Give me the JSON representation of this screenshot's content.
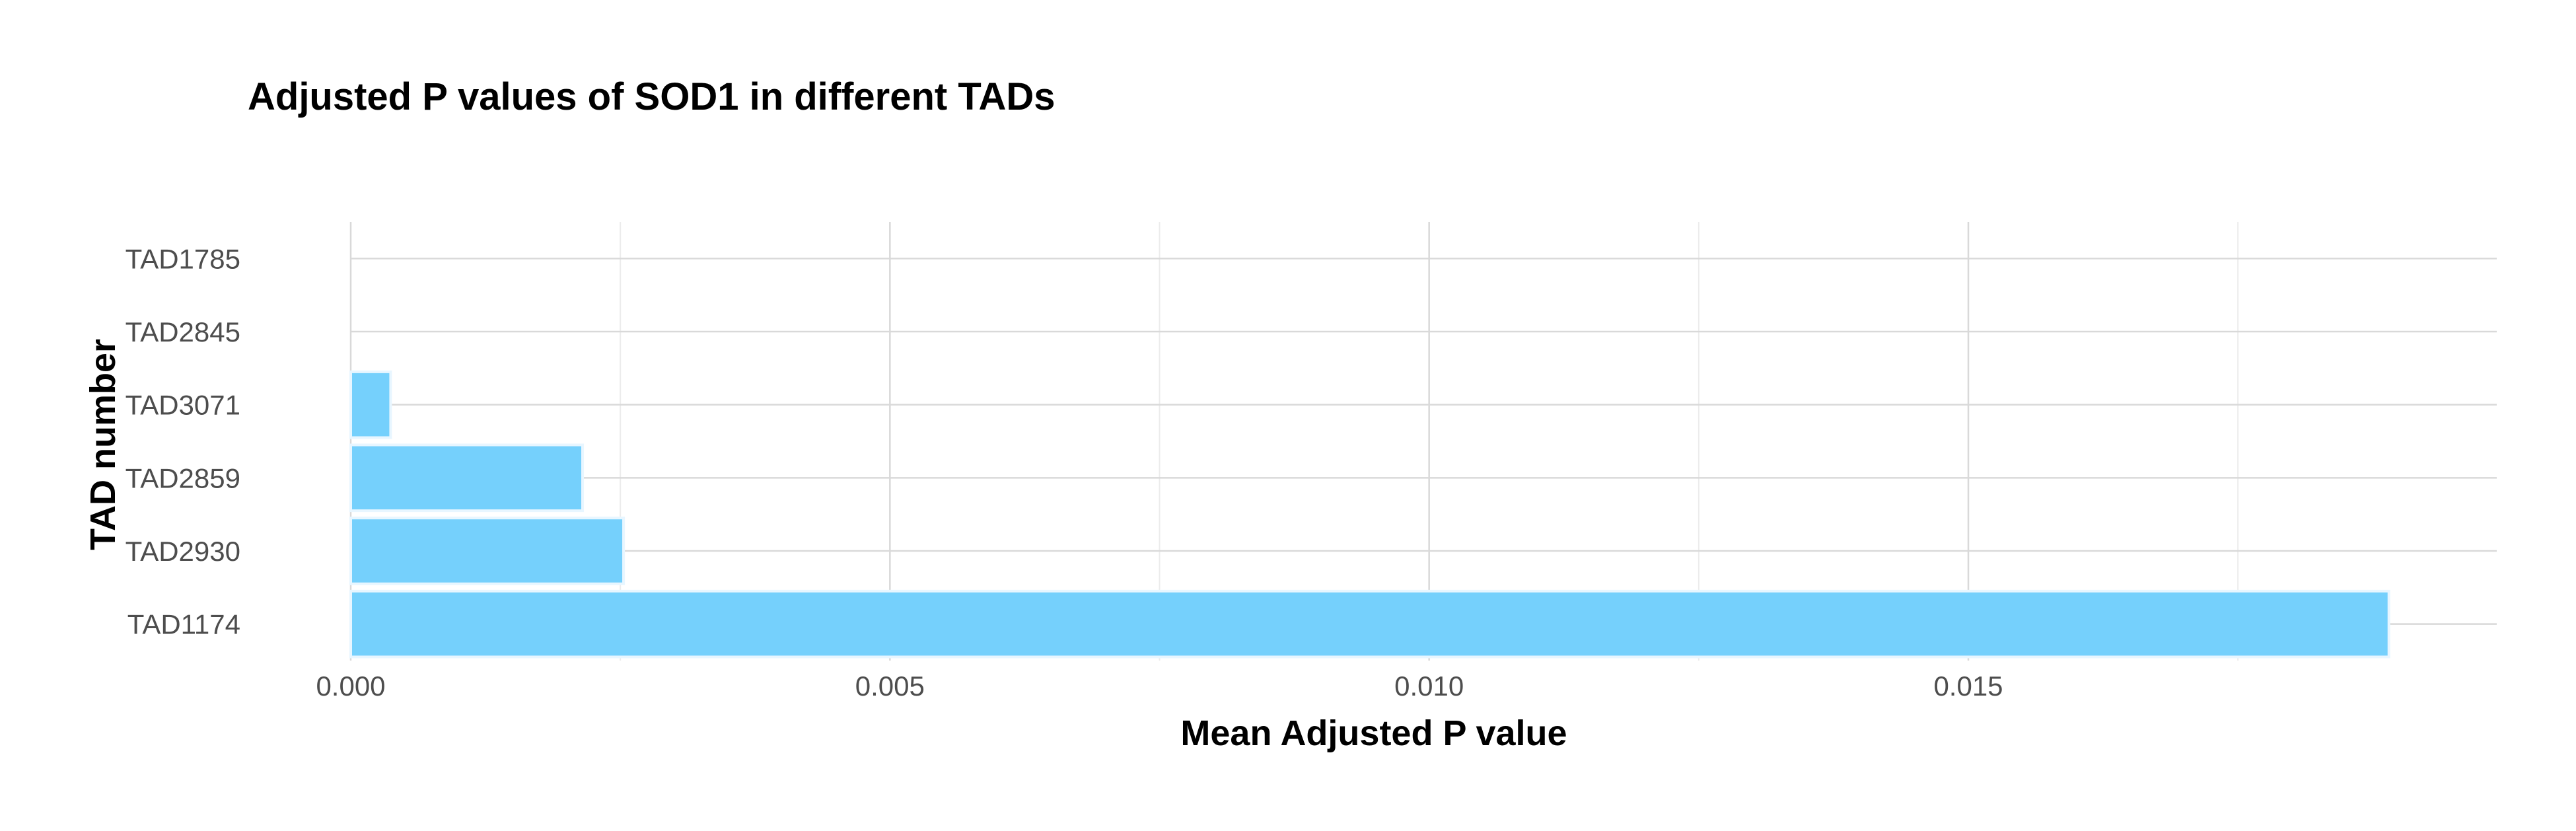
{
  "chart_data": {
    "type": "bar",
    "orientation": "horizontal",
    "title": "Adjusted P values of SOD1 in different TADs",
    "xlabel": "Mean Adjusted P value",
    "ylabel": "TAD number",
    "categories": [
      "TAD1174",
      "TAD2930",
      "TAD2859",
      "TAD3071",
      "TAD2845",
      "TAD1785"
    ],
    "values": [
      0.0189,
      0.00253,
      0.00215,
      0.00037,
      0.0,
      0.0
    ],
    "xlim": [
      0.0,
      0.0199
    ],
    "xticks": [
      0.0,
      0.005,
      0.01,
      0.015
    ],
    "xtick_labels": [
      "0.000",
      "0.005",
      "0.010",
      "0.015"
    ],
    "grid": true,
    "bar_color": "#75d0fc",
    "bar_outline_color": "#e8f6ff"
  }
}
